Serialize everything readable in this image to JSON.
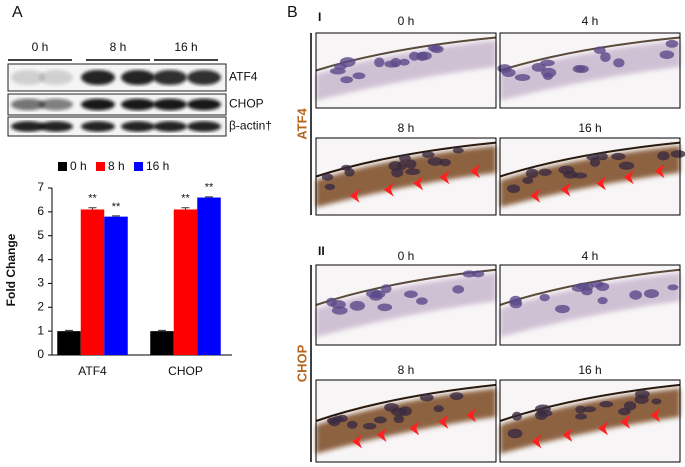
{
  "panel_a": {
    "label": "A",
    "blot": {
      "lanes": [
        "0 h",
        "8 h",
        "16 h"
      ],
      "proteins": [
        "ATF4",
        "CHOP",
        "β-actin†"
      ]
    }
  },
  "chart_data": {
    "type": "bar",
    "y_label": "Fold Change",
    "categories": [
      "ATF4",
      "CHOP"
    ],
    "series": [
      {
        "name": "0 h",
        "color": "#000000",
        "values": [
          1,
          1
        ],
        "errors": [
          0.03,
          0.03
        ],
        "significance": [
          null,
          null
        ]
      },
      {
        "name": "8 h",
        "color": "#ff0000",
        "values": [
          6.1,
          6.1
        ],
        "errors": [
          0.07,
          0.07
        ],
        "significance": [
          "**",
          "**"
        ]
      },
      {
        "name": "16 h",
        "color": "#0000ff",
        "values": [
          5.8,
          6.6
        ],
        "errors": [
          0.03,
          0.03
        ],
        "significance": [
          "**",
          "**"
        ]
      }
    ],
    "ylim": [
      0,
      7
    ],
    "yticks": [
      0,
      1,
      2,
      3,
      4,
      5,
      6,
      7
    ],
    "legend": "top"
  },
  "panel_b": {
    "label": "B",
    "sections": [
      {
        "label": "I",
        "stain": "ATF4",
        "times": [
          "0 h",
          "4 h",
          "8 h",
          "16 h"
        ]
      },
      {
        "label": "II",
        "stain": "CHOP",
        "times": [
          "0 h",
          "4 h",
          "8 h",
          "16 h"
        ]
      }
    ]
  }
}
